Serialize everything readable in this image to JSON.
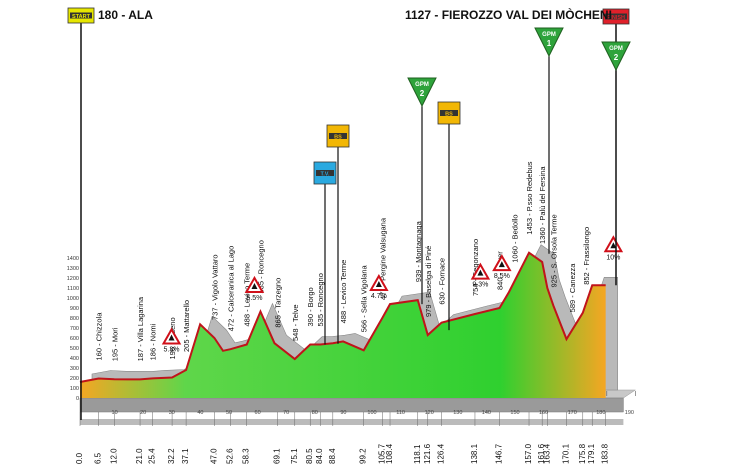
{
  "header": {
    "start_name": "180 - ALA",
    "finish_name": "1127 - FIEROZZO VAL DEI MÒCHENI"
  },
  "badges": {
    "start": "START",
    "finish": "FINISH",
    "gpm": "GPM",
    "tv": "T.V.",
    "sprint": "BS"
  },
  "colors": {
    "start_badge": "#e6e600",
    "finish_badge": "#e0202a",
    "gpm_badge": "#2ea33b",
    "sprint_badge": "#f2b705",
    "tv_badge": "#2aa9e0",
    "profile_green": "#2fd02f",
    "profile_orange": "#f5a623",
    "profile_outline": "#c0141a"
  },
  "chart_data": {
    "type": "area",
    "title": "",
    "xlabel": "",
    "ylabel": "",
    "xlim": [
      0,
      190
    ],
    "ylim": [
      0,
      1400
    ],
    "yticks": [
      0,
      100,
      200,
      300,
      400,
      500,
      600,
      700,
      800,
      900,
      1000,
      1100,
      1200,
      1300,
      1400
    ],
    "xticks": [
      10,
      20,
      30,
      40,
      50,
      60,
      70,
      80,
      90,
      100,
      110,
      120,
      130,
      140,
      150,
      160,
      170,
      180,
      190
    ],
    "profile": {
      "km": [
        0,
        6.5,
        12,
        21,
        25.4,
        32.2,
        37.1,
        42,
        47,
        50,
        52.6,
        58.3,
        63.1,
        68,
        75.1,
        80.5,
        84,
        88.4,
        92,
        99.2,
        105.7,
        108.4,
        118.1,
        121.6,
        126.4,
        138.1,
        146.7,
        150,
        157,
        161.6,
        163.4,
        165.5,
        170.1,
        175.8,
        179.1,
        183.8
      ],
      "alt": [
        160,
        195,
        187,
        186,
        196,
        205,
        280,
        737,
        600,
        472,
        488,
        535,
        865,
        548,
        390,
        535,
        535,
        548,
        566,
        477,
        800,
        939,
        979,
        630,
        754,
        840,
        900,
        1060,
        1453,
        1360,
        1100,
        925,
        589,
        852,
        1127,
        1127
      ]
    },
    "km_labels": [
      "0.0",
      "6.5",
      "12.0",
      "21.0",
      "25.4",
      "32.2",
      "37.1",
      "47.0",
      "52.6",
      "58.3",
      "69.1",
      "75.1",
      "80.5",
      "84.0",
      "88.4",
      "99.2",
      "105.7",
      "108.4",
      "118.1",
      "121.6",
      "126.4",
      "138.1",
      "146.7",
      "157.0",
      "161.6",
      "163.4",
      "170.1",
      "175.8",
      "179.1",
      "183.8"
    ],
    "locations": [
      {
        "km": 6.5,
        "alt": "160",
        "name": "Chizzola"
      },
      {
        "km": 12.0,
        "alt": "195",
        "name": "Mori"
      },
      {
        "km": 21.0,
        "alt": "187",
        "name": "Villa Lagarina"
      },
      {
        "km": 25.4,
        "alt": "186",
        "name": "Nomi"
      },
      {
        "km": 32.2,
        "alt": "196",
        "name": "Aldeno"
      },
      {
        "km": 37.1,
        "alt": "205",
        "name": "Mattarello"
      },
      {
        "km": 47.0,
        "alt": "737",
        "name": "Vigolo Vattaro"
      },
      {
        "km": 52.6,
        "alt": "472",
        "name": "Calceranica al Lago"
      },
      {
        "km": 58.3,
        "alt": "488",
        "name": "Levico Terme"
      },
      {
        "km": 63.1,
        "alt": "535",
        "name": "Roncegno"
      },
      {
        "km": 69.1,
        "alt": "865",
        "name": "Tarzegno"
      },
      {
        "km": 75.1,
        "alt": "548",
        "name": "Telve"
      },
      {
        "km": 80.5,
        "alt": "390",
        "name": "Borgo"
      },
      {
        "km": 84.0,
        "alt": "535",
        "name": "Roncegno"
      },
      {
        "km": 92.0,
        "alt": "488",
        "name": "Levico Terme"
      },
      {
        "km": 99.2,
        "alt": "566",
        "name": "Sella Vigolana"
      },
      {
        "km": 105.7,
        "alt": "477",
        "name": "Pergine Valsugana"
      },
      {
        "km": 118.1,
        "alt": "939",
        "name": "Montagnaga"
      },
      {
        "km": 121.6,
        "alt": "979",
        "name": "Baselga di Piné"
      },
      {
        "km": 126.4,
        "alt": "630",
        "name": "Fornace"
      },
      {
        "km": 138.1,
        "alt": "754",
        "name": "Segonzano"
      },
      {
        "km": 146.7,
        "alt": "840",
        "name": "Sover"
      },
      {
        "km": 152.0,
        "alt": "1060",
        "name": "Bedollo"
      },
      {
        "km": 157.0,
        "alt": "1453",
        "name": "P.sso Redebus"
      },
      {
        "km": 161.6,
        "alt": "1360",
        "name": "Palù del Fersina"
      },
      {
        "km": 165.5,
        "alt": "925",
        "name": "S. Orsola Terme"
      },
      {
        "km": 172.0,
        "alt": "589",
        "name": "Canezza"
      },
      {
        "km": 177.0,
        "alt": "852",
        "name": "Frassilongo"
      }
    ],
    "gradients": [
      {
        "km": 32.0,
        "label": "5.3%"
      },
      {
        "km": 61.0,
        "label": "5.5%"
      },
      {
        "km": 104.5,
        "label": "4.7%"
      },
      {
        "km": 147.5,
        "label": "8.5%"
      },
      {
        "km": 140.0,
        "label": "9.3%"
      },
      {
        "km": 186.5,
        "label": "10%"
      }
    ],
    "markers": [
      {
        "type": "start",
        "km": 0
      },
      {
        "type": "finish",
        "km": 183.8
      },
      {
        "type": "tv",
        "km": 81
      },
      {
        "type": "sprint",
        "km": 86.5
      },
      {
        "type": "gpm",
        "km": 118.5,
        "label": "2"
      },
      {
        "type": "sprint",
        "km": 123.5
      },
      {
        "type": "gpm",
        "km": 157.5,
        "label": "1"
      },
      {
        "type": "gpm",
        "km": 183.8,
        "label": "2"
      }
    ]
  }
}
